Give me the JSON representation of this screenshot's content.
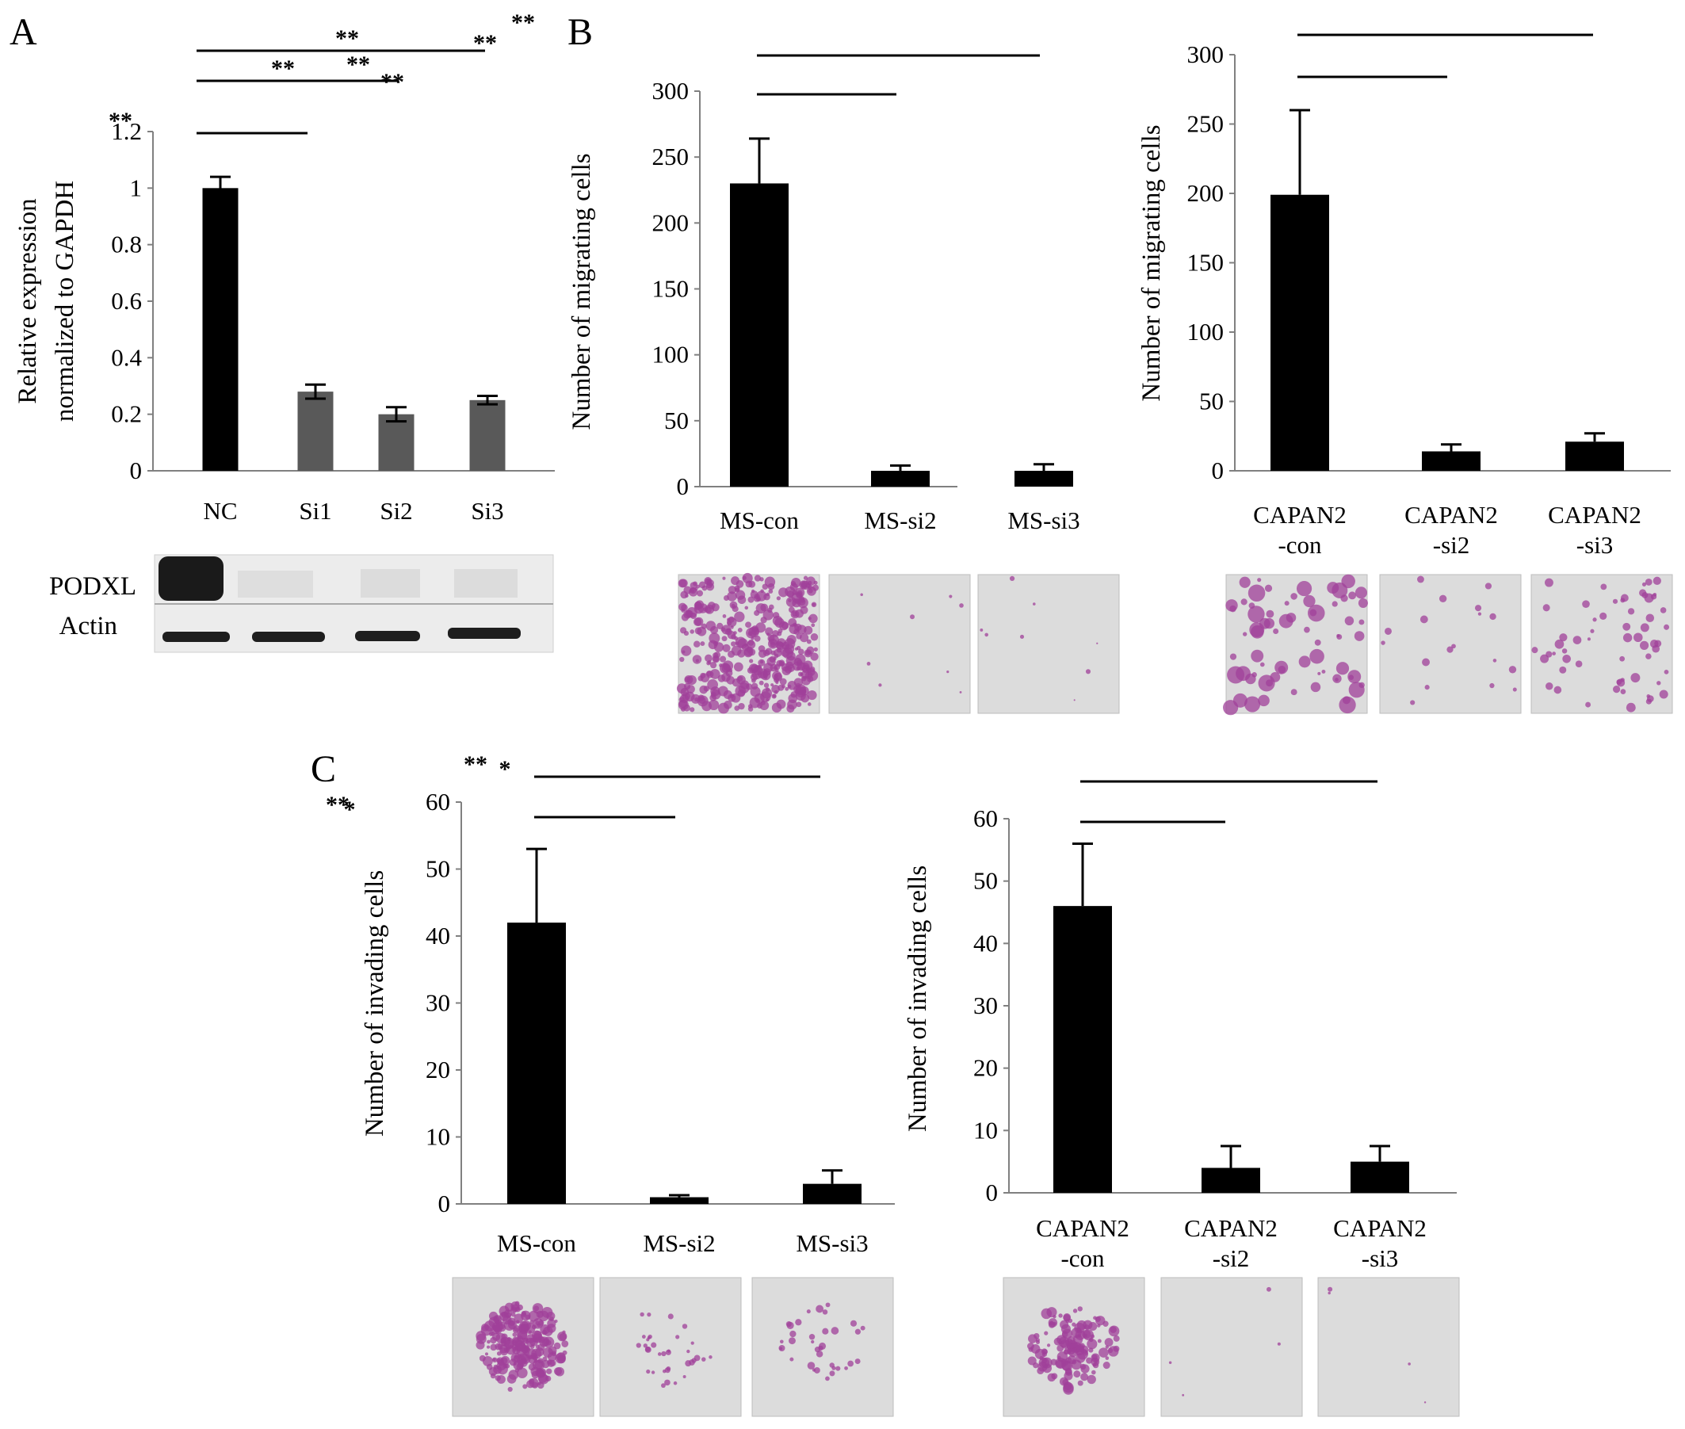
{
  "colors": {
    "bar_dark": "#000000",
    "bar_gray": "#595959",
    "stain": "#a0409a"
  },
  "icons": {
    "micrograph": "transwell-micrograph-image",
    "blot": "western-blot-image"
  },
  "panels": {
    "A": {
      "label": "A"
    },
    "B": {
      "label": "B"
    },
    "C": {
      "label": "C"
    }
  },
  "blot": {
    "row1": "PODXL",
    "row2": "Actin"
  },
  "chart_data": [
    {
      "id": "A",
      "type": "bar",
      "ylabel_lines": [
        "Relative expression",
        "normalized to GAPDH"
      ],
      "categories": [
        [
          "NC"
        ],
        [
          "Si1"
        ],
        [
          "Si2"
        ],
        [
          "Si3"
        ]
      ],
      "values": [
        1.0,
        0.28,
        0.2,
        0.25
      ],
      "errors": [
        0.04,
        0.025,
        0.025,
        0.015
      ],
      "bar_colors": [
        "#000000",
        "#595959",
        "#595959",
        "#595959"
      ],
      "ylim": [
        0,
        1.2
      ],
      "yticks": [
        0,
        0.2,
        0.4,
        0.6,
        0.8,
        1,
        1.2
      ],
      "significance": [
        {
          "from": 0,
          "to": 1,
          "label": "**"
        },
        {
          "from": 0,
          "to": 2,
          "label": "**"
        },
        {
          "from": 0,
          "to": 3,
          "label": "**"
        }
      ]
    },
    {
      "id": "B1",
      "type": "bar",
      "ylabel_lines": [
        "Number of migrating  cells"
      ],
      "categories": [
        [
          "MS-con"
        ],
        [
          "MS-si2"
        ],
        [
          "MS-si3"
        ]
      ],
      "values": [
        230,
        12,
        12
      ],
      "errors": [
        34,
        4,
        5
      ],
      "ylim": [
        0,
        300
      ],
      "yticks": [
        0,
        50,
        100,
        150,
        200,
        250,
        300
      ],
      "significance": [
        {
          "from": 0,
          "to": 1,
          "label": "**"
        },
        {
          "from": 0,
          "to": 2,
          "label": "**"
        }
      ]
    },
    {
      "id": "B2",
      "type": "bar",
      "ylabel_lines": [
        "Number of migrating  cells"
      ],
      "categories": [
        [
          "CAPAN2",
          "-con"
        ],
        [
          "CAPAN2",
          "-si2"
        ],
        [
          "CAPAN2",
          "-si3"
        ]
      ],
      "values": [
        199,
        14,
        21
      ],
      "errors": [
        61,
        5,
        6
      ],
      "ylim": [
        0,
        300
      ],
      "yticks": [
        0,
        50,
        100,
        150,
        200,
        250,
        300
      ],
      "significance": [
        {
          "from": 0,
          "to": 1,
          "label": "**"
        },
        {
          "from": 0,
          "to": 2,
          "label": "**"
        }
      ]
    },
    {
      "id": "C1",
      "type": "bar",
      "ylabel_lines": [
        "Number of invading cells"
      ],
      "categories": [
        [
          "MS-con"
        ],
        [
          "MS-si2"
        ],
        [
          "MS-si3"
        ]
      ],
      "values": [
        42,
        1,
        3
      ],
      "errors": [
        11,
        0.3,
        2
      ],
      "ylim": [
        0,
        60
      ],
      "yticks": [
        0,
        10,
        20,
        30,
        40,
        50,
        60
      ],
      "significance": [
        {
          "from": 0,
          "to": 1,
          "label": "**"
        },
        {
          "from": 0,
          "to": 2,
          "label": "**"
        }
      ]
    },
    {
      "id": "C2",
      "type": "bar",
      "ylabel_lines": [
        "Number of invading cells"
      ],
      "categories": [
        [
          "CAPAN2",
          "-con"
        ],
        [
          "CAPAN2",
          "-si2"
        ],
        [
          "CAPAN2",
          "-si3"
        ]
      ],
      "values": [
        46,
        4,
        5
      ],
      "errors": [
        10,
        3.5,
        2.5
      ],
      "ylim": [
        0,
        60
      ],
      "yticks": [
        0,
        10,
        20,
        30,
        40,
        50,
        60
      ],
      "significance": [
        {
          "from": 0,
          "to": 1,
          "label": "*"
        },
        {
          "from": 0,
          "to": 2,
          "label": "*"
        }
      ]
    }
  ]
}
